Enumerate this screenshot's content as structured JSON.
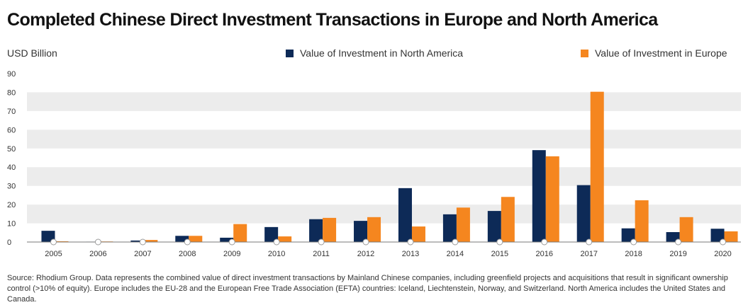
{
  "header": {
    "title": "Completed Chinese Direct Investment Transactions in Europe and North America",
    "unit": "USD Billion"
  },
  "legend": {
    "north_america": "Value of Investment in North America",
    "europe": "Value of Investment in Europe"
  },
  "colors": {
    "north_america": "#0d2a57",
    "europe": "#f5861f",
    "band": "#ececec"
  },
  "footer": {
    "source": "Source: Rhodium Group. Data represents the combined value of direct investment transactions by Mainland Chinese companies, including greenfield projects and acquisitions that result in significant ownership control (>10% of equity). Europe includes the EU-28 and the European Free Trade Association (EFTA) countries: Iceland, Liechtenstein, Norway, and Switzerland. North America includes the United States and Canada."
  },
  "chart_data": {
    "type": "bar",
    "title": "Completed Chinese Direct Investment Transactions in Europe and North America",
    "ylabel": "USD Billion",
    "ylim": [
      0,
      90
    ],
    "yticks": [
      0,
      10,
      20,
      30,
      40,
      50,
      60,
      70,
      80,
      90
    ],
    "categories": [
      "2005",
      "2006",
      "2007",
      "2008",
      "2009",
      "2010",
      "2011",
      "2012",
      "2013",
      "2014",
      "2015",
      "2016",
      "2017",
      "2018",
      "2019",
      "2020"
    ],
    "series": [
      {
        "name": "Value of Investment in North America",
        "values": [
          6,
          0.2,
          0.8,
          3.3,
          2.3,
          8,
          12.2,
          11.3,
          28.8,
          14.8,
          16.6,
          49.1,
          30.4,
          7.3,
          5.3,
          7.1
        ]
      },
      {
        "name": "Value of Investment in Europe",
        "values": [
          0.4,
          0.3,
          1.1,
          3.3,
          9.6,
          3,
          12.9,
          13.3,
          8.3,
          18.4,
          24.1,
          45.8,
          80.3,
          22.3,
          13.3,
          5.7
        ]
      }
    ],
    "grid": "alternating horizontal bands",
    "legend_position": "top"
  }
}
